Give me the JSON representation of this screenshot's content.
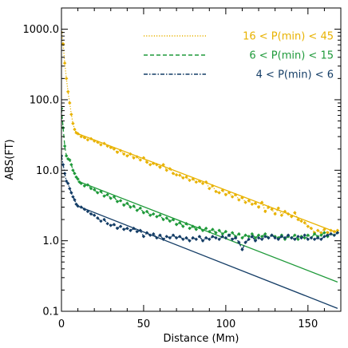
{
  "chart_data": {
    "type": "line",
    "xlabel": "Distance (Mm)",
    "ylabel": "ABS(FT)",
    "xlim": [
      0,
      170
    ],
    "ylim": [
      0.1,
      2000
    ],
    "yscale": "log",
    "grid": false,
    "legend_position": "top-right",
    "x_ticks": [
      0,
      50,
      100,
      150
    ],
    "x_tick_labels": [
      "0",
      "50",
      "100",
      "150"
    ],
    "y_ticks": [
      0.1,
      1,
      10,
      100,
      1000
    ],
    "y_tick_labels": [
      "0.1",
      "1.0",
      "10.0",
      "100.0",
      "1000.0"
    ],
    "series": [
      {
        "name": "16 < P(min) < 45",
        "color": "#e8b200",
        "line_style": "dotted",
        "marker": "diamond",
        "data": [
          [
            0,
            900
          ],
          [
            1,
            620
          ],
          [
            2,
            330
          ],
          [
            3,
            200
          ],
          [
            4,
            130
          ],
          [
            5,
            90
          ],
          [
            6,
            62
          ],
          [
            7,
            46
          ],
          [
            8,
            38
          ],
          [
            9,
            34
          ],
          [
            10,
            33
          ],
          [
            12,
            30
          ],
          [
            14,
            29
          ],
          [
            16,
            27
          ],
          [
            18,
            28
          ],
          [
            20,
            26
          ],
          [
            22,
            25
          ],
          [
            24,
            23
          ],
          [
            26,
            24
          ],
          [
            28,
            22
          ],
          [
            30,
            21
          ],
          [
            32,
            20
          ],
          [
            34,
            18
          ],
          [
            36,
            19
          ],
          [
            38,
            17
          ],
          [
            40,
            16
          ],
          [
            42,
            17
          ],
          [
            44,
            15
          ],
          [
            46,
            15.5
          ],
          [
            48,
            14
          ],
          [
            50,
            15
          ],
          [
            52,
            13
          ],
          [
            54,
            12
          ],
          [
            56,
            12.5
          ],
          [
            58,
            12
          ],
          [
            60,
            11
          ],
          [
            62,
            12
          ],
          [
            64,
            10
          ],
          [
            66,
            10.5
          ],
          [
            68,
            9
          ],
          [
            70,
            8.6
          ],
          [
            72,
            8.5
          ],
          [
            74,
            7.8
          ],
          [
            76,
            8
          ],
          [
            78,
            7.2
          ],
          [
            80,
            7.5
          ],
          [
            82,
            6.8
          ],
          [
            84,
            7
          ],
          [
            86,
            6.5
          ],
          [
            88,
            6.8
          ],
          [
            90,
            5.5
          ],
          [
            92,
            6
          ],
          [
            94,
            5
          ],
          [
            96,
            4.8
          ],
          [
            98,
            5.2
          ],
          [
            100,
            4.5
          ],
          [
            102,
            4.8
          ],
          [
            104,
            4.2
          ],
          [
            106,
            4.5
          ],
          [
            108,
            3.8
          ],
          [
            110,
            4.1
          ],
          [
            112,
            3.5
          ],
          [
            114,
            3.7
          ],
          [
            116,
            3.3
          ],
          [
            118,
            3.4
          ],
          [
            120,
            3
          ],
          [
            122,
            3.5
          ],
          [
            124,
            2.6
          ],
          [
            126,
            3
          ],
          [
            128,
            2.8
          ],
          [
            130,
            2.4
          ],
          [
            132,
            2.9
          ],
          [
            134,
            2.3
          ],
          [
            136,
            2.6
          ],
          [
            138,
            2.4
          ],
          [
            140,
            2.2
          ],
          [
            142,
            2.5
          ],
          [
            144,
            2
          ],
          [
            146,
            1.9
          ],
          [
            148,
            1.8
          ],
          [
            150,
            1.6
          ],
          [
            152,
            1.5
          ],
          [
            154,
            1.3
          ],
          [
            156,
            1.4
          ],
          [
            158,
            1.3
          ],
          [
            160,
            1.45
          ],
          [
            162,
            1.3
          ],
          [
            164,
            1.4
          ],
          [
            166,
            1.35
          ],
          [
            168,
            1.4
          ]
        ],
        "fit": [
          [
            10,
            33
          ],
          [
            168,
            1.3
          ]
        ]
      },
      {
        "name": "6 < P(min) < 15",
        "color": "#1f9a3a",
        "line_style": "dashed",
        "marker": "diamond",
        "data": [
          [
            0,
            75
          ],
          [
            1,
            40
          ],
          [
            2,
            22
          ],
          [
            3,
            16
          ],
          [
            4,
            14.5
          ],
          [
            5,
            14
          ],
          [
            6,
            12
          ],
          [
            7,
            10
          ],
          [
            8,
            9
          ],
          [
            9,
            8
          ],
          [
            10,
            7.5
          ],
          [
            11,
            6.8
          ],
          [
            12,
            6.5
          ],
          [
            14,
            6
          ],
          [
            16,
            6.2
          ],
          [
            18,
            5.5
          ],
          [
            20,
            5.3
          ],
          [
            22,
            4.8
          ],
          [
            24,
            5
          ],
          [
            26,
            4.3
          ],
          [
            28,
            4.5
          ],
          [
            30,
            4
          ],
          [
            32,
            4.2
          ],
          [
            34,
            3.6
          ],
          [
            36,
            3.7
          ],
          [
            38,
            3.2
          ],
          [
            40,
            3.4
          ],
          [
            42,
            3
          ],
          [
            44,
            3.1
          ],
          [
            46,
            2.7
          ],
          [
            48,
            2.9
          ],
          [
            50,
            2.5
          ],
          [
            52,
            2.6
          ],
          [
            54,
            2.3
          ],
          [
            56,
            2.4
          ],
          [
            58,
            2.2
          ],
          [
            60,
            2.3
          ],
          [
            62,
            2
          ],
          [
            64,
            2.1
          ],
          [
            66,
            1.9
          ],
          [
            68,
            2
          ],
          [
            70,
            1.7
          ],
          [
            72,
            1.8
          ],
          [
            74,
            1.6
          ],
          [
            76,
            1.75
          ],
          [
            78,
            1.5
          ],
          [
            80,
            1.6
          ],
          [
            82,
            1.45
          ],
          [
            84,
            1.55
          ],
          [
            86,
            1.4
          ],
          [
            88,
            1.5
          ],
          [
            90,
            1.35
          ],
          [
            92,
            1.45
          ],
          [
            94,
            1.3
          ],
          [
            96,
            1.4
          ],
          [
            98,
            1.25
          ],
          [
            100,
            1.35
          ],
          [
            102,
            1.2
          ],
          [
            104,
            1.3
          ],
          [
            106,
            1.15
          ],
          [
            108,
            1.25
          ],
          [
            110,
            1.1
          ],
          [
            112,
            1.2
          ],
          [
            114,
            1.15
          ],
          [
            116,
            1.25
          ],
          [
            118,
            1.1
          ],
          [
            120,
            1.2
          ],
          [
            122,
            1.15
          ],
          [
            124,
            1.25
          ],
          [
            126,
            1.1
          ],
          [
            128,
            1.2
          ],
          [
            130,
            1.15
          ],
          [
            132,
            1.1
          ],
          [
            134,
            1.2
          ],
          [
            136,
            1.05
          ],
          [
            138,
            1.15
          ],
          [
            140,
            1.1
          ],
          [
            142,
            1.2
          ],
          [
            144,
            1.05
          ],
          [
            146,
            1.15
          ],
          [
            148,
            1.1
          ],
          [
            150,
            1.2
          ],
          [
            152,
            1.1
          ],
          [
            154,
            1.25
          ],
          [
            156,
            1.15
          ],
          [
            158,
            1.2
          ],
          [
            160,
            1.3
          ],
          [
            162,
            1.15
          ],
          [
            164,
            1.25
          ],
          [
            166,
            1.2
          ],
          [
            168,
            1.3
          ]
        ],
        "fit": [
          [
            10,
            7
          ],
          [
            168,
            0.26
          ]
        ]
      },
      {
        "name": "4 < P(min) < 6",
        "color": "#143d66",
        "line_style": "dashdot",
        "marker": "diamond",
        "data": [
          [
            0,
            16
          ],
          [
            1,
            12
          ],
          [
            2,
            9
          ],
          [
            3,
            7
          ],
          [
            4,
            6.5
          ],
          [
            5,
            5.5
          ],
          [
            6,
            4.8
          ],
          [
            7,
            4.2
          ],
          [
            8,
            3.8
          ],
          [
            9,
            3.3
          ],
          [
            10,
            3.1
          ],
          [
            12,
            3
          ],
          [
            14,
            2.8
          ],
          [
            16,
            2.6
          ],
          [
            18,
            2.4
          ],
          [
            20,
            2.3
          ],
          [
            22,
            2.1
          ],
          [
            24,
            1.9
          ],
          [
            26,
            2
          ],
          [
            28,
            1.75
          ],
          [
            30,
            1.65
          ],
          [
            32,
            1.7
          ],
          [
            34,
            1.5
          ],
          [
            36,
            1.6
          ],
          [
            38,
            1.45
          ],
          [
            40,
            1.5
          ],
          [
            42,
            1.4
          ],
          [
            44,
            1.5
          ],
          [
            46,
            1.35
          ],
          [
            48,
            1.4
          ],
          [
            50,
            1.15
          ],
          [
            52,
            1.3
          ],
          [
            54,
            1.2
          ],
          [
            56,
            1.25
          ],
          [
            58,
            1.1
          ],
          [
            60,
            1.2
          ],
          [
            62,
            1.05
          ],
          [
            64,
            1.15
          ],
          [
            66,
            1.1
          ],
          [
            68,
            1.2
          ],
          [
            70,
            1.1
          ],
          [
            72,
            1.15
          ],
          [
            74,
            1.05
          ],
          [
            76,
            1.1
          ],
          [
            78,
            1
          ],
          [
            80,
            1.1
          ],
          [
            82,
            1.05
          ],
          [
            84,
            1.15
          ],
          [
            86,
            1
          ],
          [
            88,
            1.1
          ],
          [
            90,
            1.05
          ],
          [
            92,
            1.15
          ],
          [
            94,
            1.1
          ],
          [
            96,
            1.05
          ],
          [
            98,
            1.15
          ],
          [
            100,
            1.1
          ],
          [
            102,
            1.2
          ],
          [
            104,
            1.05
          ],
          [
            106,
            1.1
          ],
          [
            108,
            0.95
          ],
          [
            110,
            0.75
          ],
          [
            112,
            0.95
          ],
          [
            114,
            1.05
          ],
          [
            116,
            1.15
          ],
          [
            118,
            1
          ],
          [
            120,
            1.1
          ],
          [
            122,
            1.05
          ],
          [
            124,
            1.15
          ],
          [
            126,
            1.1
          ],
          [
            128,
            1.2
          ],
          [
            130,
            1.1
          ],
          [
            132,
            1.05
          ],
          [
            134,
            1.15
          ],
          [
            136,
            1.1
          ],
          [
            138,
            1.2
          ],
          [
            140,
            1.1
          ],
          [
            142,
            1.05
          ],
          [
            144,
            1.15
          ],
          [
            146,
            1.1
          ],
          [
            148,
            1.2
          ],
          [
            150,
            1.05
          ],
          [
            152,
            1.1
          ],
          [
            154,
            1.05
          ],
          [
            156,
            1.1
          ],
          [
            158,
            1.05
          ],
          [
            160,
            1.15
          ],
          [
            162,
            1.2
          ],
          [
            164,
            1.25
          ],
          [
            166,
            1.2
          ],
          [
            168,
            1.3
          ]
        ],
        "fit": [
          [
            10,
            3.1
          ],
          [
            168,
            0.11
          ]
        ]
      }
    ]
  }
}
